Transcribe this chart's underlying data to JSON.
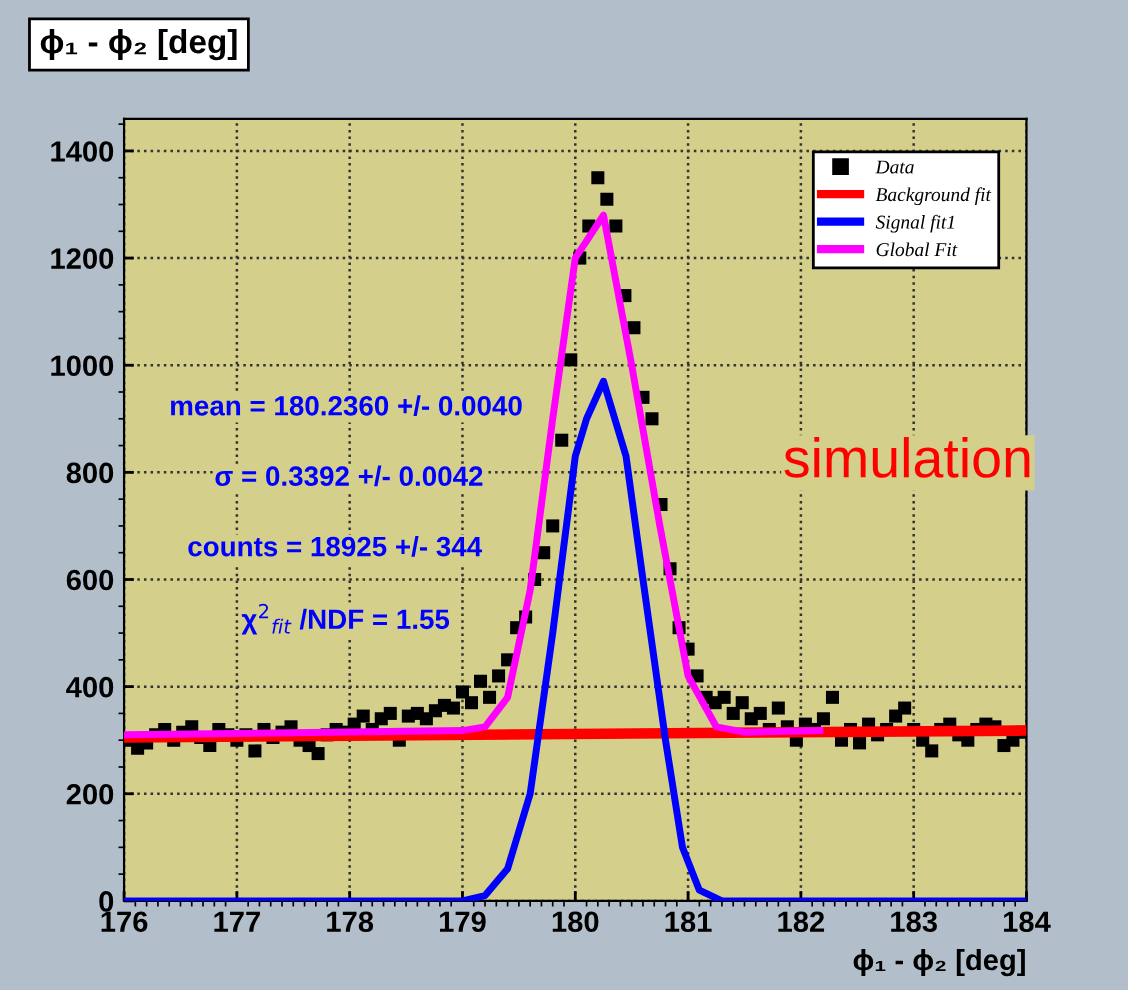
{
  "chart_data": {
    "type": "scatter",
    "title": "ϕ₁ - ϕ₂ [deg]",
    "xlabel": "ϕ₁ - ϕ₂ [deg]",
    "xlim": [
      176,
      184
    ],
    "xticks": [
      176,
      177,
      178,
      179,
      180,
      181,
      182,
      183,
      184
    ],
    "ylim": [
      0,
      1460
    ],
    "yticks": [
      0,
      200,
      400,
      600,
      800,
      1000,
      1200,
      1400
    ],
    "grid": true,
    "legend": "top right",
    "annotations": [
      "mean = 180.2360 +/- 0.0040",
      "σ = 0.3392 +/- 0.0042",
      "counts = 18925 +/- 344",
      "χ$^{2}$$_{fit}$ /NDF = 1.55",
      "simulation"
    ],
    "series": [
      {
        "name": "Data",
        "marker": "square",
        "color": "#000000",
        "x": [
          176.04,
          176.12,
          176.2,
          176.28,
          176.36,
          176.44,
          176.52,
          176.6,
          176.68,
          176.76,
          176.84,
          176.92,
          177.0,
          177.08,
          177.16,
          177.24,
          177.32,
          177.4,
          177.48,
          177.56,
          177.64,
          177.72,
          177.8,
          177.88,
          177.96,
          178.04,
          178.12,
          178.2,
          178.28,
          178.36,
          178.44,
          178.52,
          178.6,
          178.68,
          178.76,
          178.84,
          178.92,
          179.0,
          179.08,
          179.16,
          179.24,
          179.32,
          179.4,
          179.48,
          179.56,
          179.64,
          179.72,
          179.8,
          179.88,
          179.96,
          180.04,
          180.12,
          180.2,
          180.28,
          180.36,
          180.44,
          180.52,
          180.6,
          180.68,
          180.76,
          180.84,
          180.92,
          181.0,
          181.08,
          181.16,
          181.24,
          181.32,
          181.4,
          181.48,
          181.56,
          181.64,
          181.72,
          181.8,
          181.88,
          181.96,
          182.04,
          182.12,
          182.2,
          182.28,
          182.36,
          182.44,
          182.52,
          182.6,
          182.68,
          182.76,
          182.84,
          182.92,
          183.0,
          183.08,
          183.16,
          183.24,
          183.32,
          183.4,
          183.48,
          183.56,
          183.64,
          183.72,
          183.8,
          183.88,
          183.96
        ],
        "values": [
          300,
          285,
          295,
          310,
          320,
          300,
          315,
          325,
          305,
          290,
          320,
          310,
          300,
          310,
          280,
          320,
          305,
          315,
          325,
          300,
          290,
          275,
          310,
          320,
          315,
          330,
          345,
          320,
          340,
          350,
          300,
          345,
          350,
          340,
          355,
          365,
          360,
          390,
          370,
          410,
          380,
          420,
          450,
          510,
          530,
          600,
          650,
          700,
          860,
          1010,
          1200,
          1260,
          1350,
          1310,
          1260,
          1130,
          1070,
          940,
          900,
          740,
          620,
          510,
          470,
          420,
          380,
          370,
          380,
          350,
          370,
          340,
          350,
          320,
          360,
          325,
          300,
          330,
          320,
          340,
          380,
          300,
          320,
          295,
          330,
          310,
          320,
          345,
          360,
          320,
          300,
          280,
          320,
          330,
          310,
          300,
          320,
          330,
          325,
          290,
          300,
          315
        ]
      },
      {
        "name": "Background fit",
        "type": "line",
        "color": "#ff0000",
        "x": [
          176,
          184
        ],
        "values": [
          305,
          318
        ]
      },
      {
        "name": "Signal fit1",
        "type": "line",
        "color": "#0000ff",
        "x": [
          176,
          179.0,
          179.2,
          179.4,
          179.6,
          179.8,
          180.0,
          180.1,
          180.25,
          180.45,
          180.6,
          180.8,
          180.95,
          181.1,
          181.3,
          184
        ],
        "values": [
          0,
          0,
          10,
          60,
          200,
          500,
          830,
          900,
          970,
          830,
          600,
          300,
          100,
          20,
          0,
          0
        ]
      },
      {
        "name": "Global Fit",
        "type": "line",
        "color": "#ff00ff",
        "x": [
          176,
          179.0,
          179.2,
          179.4,
          179.6,
          179.8,
          180.0,
          180.25,
          180.5,
          180.75,
          181.0,
          181.25,
          181.5,
          182.2
        ],
        "values": [
          310,
          318,
          325,
          380,
          580,
          900,
          1200,
          1280,
          1000,
          700,
          420,
          325,
          315,
          318
        ]
      }
    ]
  }
}
